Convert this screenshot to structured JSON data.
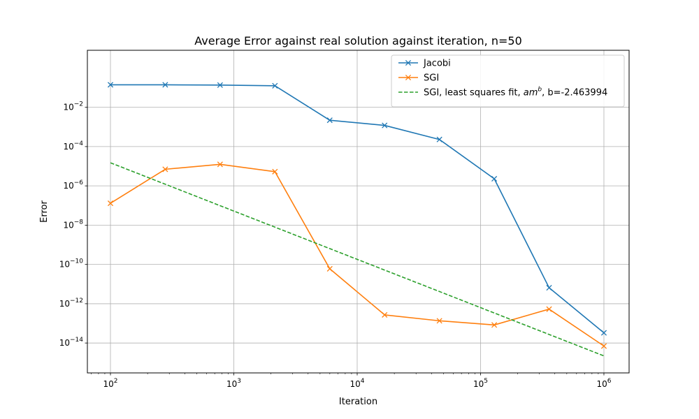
{
  "chart_data": {
    "type": "line",
    "title": "Average Error against real solution against iteration, n=50",
    "xlabel": "Iteration",
    "ylabel": "Error",
    "xscale": "log",
    "yscale": "log",
    "xlim": [
      65,
      1600000
    ],
    "ylim": [
      3e-16,
      8
    ],
    "x_ticks": [
      {
        "value": 100,
        "base": "10",
        "exp": "2"
      },
      {
        "value": 1000,
        "base": "10",
        "exp": "3"
      },
      {
        "value": 10000,
        "base": "10",
        "exp": "4"
      },
      {
        "value": 100000,
        "base": "10",
        "exp": "5"
      },
      {
        "value": 1000000,
        "base": "10",
        "exp": "6"
      }
    ],
    "y_ticks": [
      {
        "value": 1e-14,
        "base": "10",
        "exp": "−14"
      },
      {
        "value": 1e-12,
        "base": "10",
        "exp": "−12"
      },
      {
        "value": 1e-10,
        "base": "10",
        "exp": "−10"
      },
      {
        "value": 1e-08,
        "base": "10",
        "exp": "−8"
      },
      {
        "value": 1e-06,
        "base": "10",
        "exp": "−6"
      },
      {
        "value": 0.0001,
        "base": "10",
        "exp": "−4"
      },
      {
        "value": 0.01,
        "base": "10",
        "exp": "−2"
      }
    ],
    "grid": true,
    "legend_position": "top-right",
    "series": [
      {
        "name": "Jacobi",
        "color": "#1f77b4",
        "style": "solid",
        "marker": "x",
        "x": [
          100,
          278,
          774,
          2154,
          5995,
          16681,
          46416,
          129155,
          359381,
          1000000
        ],
        "y": [
          0.14,
          0.14,
          0.135,
          0.125,
          0.0022,
          0.0012,
          0.00023,
          2.3e-06,
          6.5e-12,
          3.3e-14
        ]
      },
      {
        "name": "SGI",
        "color": "#ff7f0e",
        "style": "solid",
        "marker": "x",
        "x": [
          100,
          278,
          774,
          2154,
          5995,
          16681,
          46416,
          129155,
          359381,
          1000000
        ],
        "y": [
          1.3e-07,
          7e-06,
          1.25e-05,
          5.3e-06,
          6e-11,
          2.7e-13,
          1.35e-13,
          8.3e-14,
          5.3e-13,
          7e-15
        ]
      },
      {
        "name_prefix": "SGI, least squares fit, ",
        "name_am": "am",
        "name_exp": "b",
        "name_suffix": ", b=-2.463994",
        "color": "#2ca02c",
        "style": "dashed",
        "marker": "none",
        "x": [
          100,
          1000000
        ],
        "y": [
          1.5e-05,
          2.2e-15
        ]
      }
    ]
  }
}
